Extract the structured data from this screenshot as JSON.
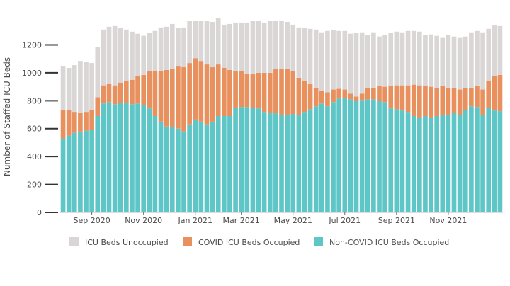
{
  "chart_data": {
    "type": "bar",
    "stacked": true,
    "title": "",
    "xlabel": "",
    "ylabel": "Number of Staffed ICU Beds",
    "ylim": [
      0,
      1380
    ],
    "yticks": [
      0,
      200,
      400,
      600,
      800,
      1000,
      1200
    ],
    "ytick_labels": [
      "0",
      "200",
      "400",
      "600",
      "800",
      "1000",
      "1200"
    ],
    "grid": false,
    "legend_position": "bottom",
    "x_tick_labels": [
      {
        "label": "Sep 2020",
        "index": 5
      },
      {
        "label": "Nov 2020",
        "index": 14
      },
      {
        "label": "Jan 2021",
        "index": 23
      },
      {
        "label": "Mar 2021",
        "index": 31
      },
      {
        "label": "May 2021",
        "index": 40
      },
      {
        "label": "Jul 2021",
        "index": 49
      },
      {
        "label": "Sep 2021",
        "index": 58
      },
      {
        "label": "Nov 2021",
        "index": 67
      }
    ],
    "categories": [
      "1",
      "2",
      "3",
      "4",
      "5",
      "6",
      "7",
      "8",
      "9",
      "10",
      "11",
      "12",
      "13",
      "14",
      "15",
      "16",
      "17",
      "18",
      "19",
      "20",
      "21",
      "22",
      "23",
      "24",
      "25",
      "26",
      "27",
      "28",
      "29",
      "30",
      "31",
      "32",
      "33",
      "34",
      "35",
      "36",
      "37",
      "38",
      "39",
      "40",
      "41",
      "42",
      "43",
      "44",
      "45",
      "46",
      "47",
      "48",
      "49",
      "50",
      "51",
      "52",
      "53",
      "54",
      "55",
      "56",
      "57",
      "58",
      "59",
      "60",
      "61",
      "62",
      "63",
      "64",
      "65",
      "66",
      "67",
      "68",
      "69",
      "70",
      "71",
      "72",
      "73",
      "74",
      "75",
      "76",
      "77"
    ],
    "series": [
      {
        "name": "Non-COVID ICU Beds Occupied",
        "color": "#5ec6c6",
        "values": [
          530,
          550,
          570,
          580,
          585,
          590,
          690,
          780,
          790,
          775,
          785,
          785,
          775,
          780,
          770,
          745,
          690,
          650,
          615,
          610,
          600,
          580,
          630,
          665,
          650,
          630,
          650,
          690,
          690,
          690,
          750,
          755,
          755,
          750,
          745,
          720,
          710,
          710,
          700,
          695,
          705,
          700,
          720,
          740,
          760,
          780,
          760,
          790,
          815,
          820,
          810,
          800,
          805,
          810,
          810,
          800,
          790,
          745,
          740,
          730,
          720,
          690,
          680,
          690,
          680,
          690,
          700,
          700,
          715,
          700,
          735,
          760,
          755,
          700,
          750,
          730,
          725
        ]
      },
      {
        "name": "COVID ICU Beds Occupied",
        "color": "#e8915e",
        "values": [
          205,
          185,
          150,
          135,
          135,
          145,
          135,
          130,
          130,
          135,
          145,
          160,
          175,
          200,
          215,
          265,
          320,
          365,
          405,
          420,
          450,
          460,
          440,
          440,
          435,
          430,
          390,
          370,
          345,
          330,
          260,
          255,
          235,
          245,
          255,
          280,
          290,
          320,
          330,
          335,
          305,
          265,
          225,
          180,
          130,
          90,
          100,
          90,
          70,
          60,
          40,
          30,
          45,
          80,
          80,
          105,
          110,
          160,
          170,
          180,
          190,
          225,
          230,
          215,
          220,
          200,
          205,
          190,
          175,
          180,
          155,
          130,
          150,
          180,
          195,
          250,
          260
        ]
      },
      {
        "name": "ICU Beds Unoccupied",
        "color": "#dad6d6",
        "values": [
          315,
          300,
          335,
          370,
          360,
          335,
          360,
          400,
          410,
          425,
          390,
          365,
          345,
          300,
          280,
          275,
          290,
          310,
          310,
          320,
          270,
          285,
          300,
          265,
          285,
          310,
          325,
          330,
          310,
          330,
          350,
          350,
          370,
          375,
          370,
          360,
          370,
          340,
          340,
          335,
          335,
          360,
          375,
          395,
          420,
          420,
          440,
          425,
          415,
          420,
          430,
          455,
          440,
          380,
          400,
          355,
          370,
          380,
          385,
          380,
          390,
          385,
          385,
          365,
          375,
          375,
          350,
          380,
          370,
          375,
          370,
          400,
          395,
          410,
          370,
          360,
          350
        ]
      }
    ]
  },
  "legend": {
    "items": [
      {
        "label": "ICU Beds Unoccupied",
        "color": "#dad6d6"
      },
      {
        "label": "COVID ICU Beds Occupied",
        "color": "#e8915e"
      },
      {
        "label": "Non-COVID ICU Beds Occupied",
        "color": "#5ec6c6"
      }
    ]
  }
}
